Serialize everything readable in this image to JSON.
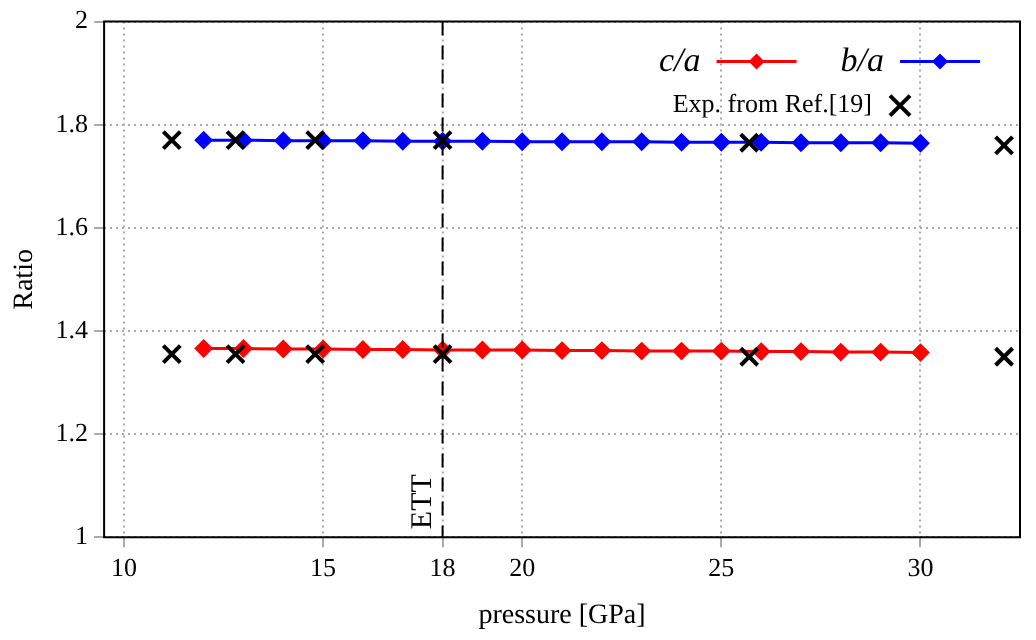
{
  "chart_data": {
    "type": "line",
    "xlabel": "pressure [GPa]",
    "ylabel": "Ratio",
    "x": [
      12,
      13,
      14,
      15,
      16,
      17,
      18,
      19,
      20,
      21,
      22,
      23,
      24,
      25,
      26,
      27,
      28,
      29,
      30
    ],
    "series": [
      {
        "name": "c/a",
        "color": "#ff0000",
        "marker": "diamond",
        "values": [
          1.366,
          1.366,
          1.365,
          1.365,
          1.364,
          1.364,
          1.363,
          1.363,
          1.363,
          1.362,
          1.362,
          1.361,
          1.361,
          1.361,
          1.36,
          1.36,
          1.359,
          1.359,
          1.358
        ]
      },
      {
        "name": "b/a",
        "color": "#0000ff",
        "marker": "diamond",
        "values": [
          1.77,
          1.77,
          1.769,
          1.769,
          1.769,
          1.768,
          1.768,
          1.768,
          1.767,
          1.767,
          1.767,
          1.767,
          1.766,
          1.766,
          1.766,
          1.765,
          1.765,
          1.765,
          1.764
        ]
      },
      {
        "name": "Exp. from Ref.[19]",
        "type": "scatter",
        "color": "#000000",
        "marker": "cross",
        "x": [
          11.2,
          12.8,
          14.8,
          18,
          25.7,
          32.1,
          11.2,
          12.8,
          14.8,
          18,
          25.7,
          32.1
        ],
        "values": [
          1.77,
          1.77,
          1.77,
          1.77,
          1.765,
          1.76,
          1.355,
          1.355,
          1.355,
          1.355,
          1.35,
          1.35
        ]
      }
    ],
    "xlim": [
      9.5,
      32.5
    ],
    "xticks": [
      10,
      15,
      18,
      20,
      25,
      30
    ],
    "ylim": [
      1,
      2
    ],
    "yticks": [
      1,
      1.2,
      1.4,
      1.6,
      1.8,
      2
    ],
    "ref_lines": [
      {
        "axis": "x",
        "value": 18,
        "label": "ETT",
        "color": "#000000",
        "line_style": "dashed"
      }
    ],
    "grid": true,
    "legend": "top right"
  }
}
